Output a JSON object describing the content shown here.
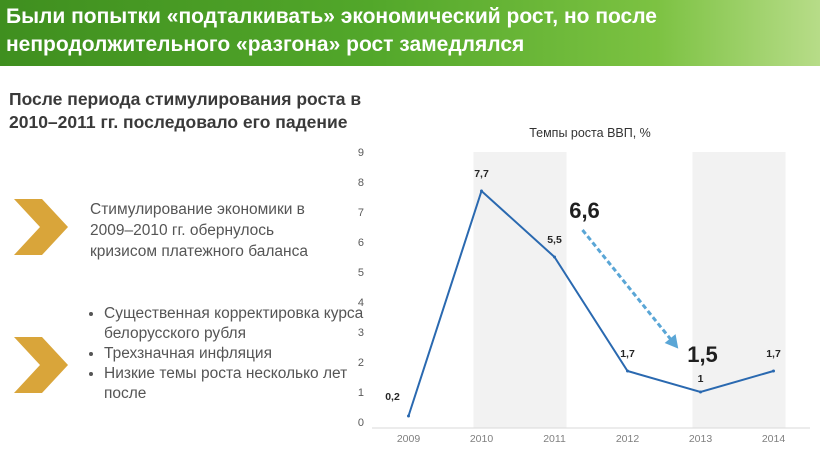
{
  "header": {
    "title": "Были попытки «подталкивать» экономический рост,  но после непродолжительного «разгона» рост замедлялся"
  },
  "subtitle": "После периода стимулирования роста в 2010–2011 гг. последовало его падение",
  "notes": {
    "stimulus": "Стимулирование экономики в 2009–2010 гг. обернулось кризисом платежного баланса",
    "bullets": [
      "Существенная корректировка курса белорусского рубля",
      "Трехзначная инфляция",
      "Низкие темы роста несколько лет после"
    ]
  },
  "colors": {
    "banner": "#4ea22a",
    "chevron": "#d9a53a",
    "line": "#2a69b0",
    "arrow": "#5aa6d6",
    "shade": "#f2f2f2"
  },
  "chart_data": {
    "type": "line",
    "title": "Темпы роста ВВП, %",
    "categories": [
      "2009",
      "2010",
      "2011",
      "2012",
      "2013",
      "2014"
    ],
    "values": [
      0.2,
      7.7,
      5.5,
      1.7,
      1,
      1.7
    ],
    "data_labels": [
      "0,2",
      "7,7",
      "5,5",
      "1,7",
      "1",
      "1,7"
    ],
    "ylim": [
      0,
      9
    ],
    "yticks": [
      0,
      1,
      2,
      3,
      4,
      5,
      6,
      7,
      8,
      9
    ],
    "grid": false,
    "shaded_periods": [
      [
        "2010",
        "2011"
      ],
      [
        "2013",
        "2014"
      ]
    ],
    "annotations": {
      "start": "6,6",
      "end": "1,5"
    }
  }
}
